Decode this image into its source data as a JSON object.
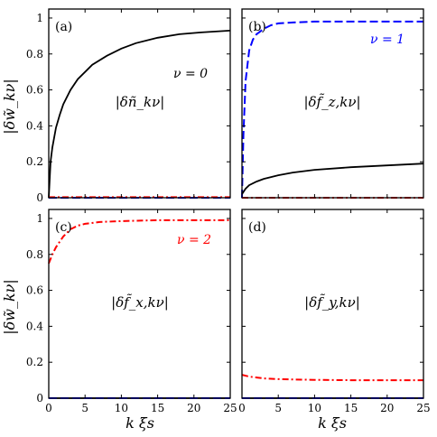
{
  "chart_data": [
    {
      "type": "line",
      "panel_label": "(a)",
      "center_label": "|δñ_kν|",
      "annotation": {
        "text": "ν = 0",
        "color": "#000000"
      },
      "xlim": [
        0,
        25
      ],
      "ylim": [
        0,
        1.05
      ],
      "xticks": [
        "0",
        "5",
        "10",
        "15",
        "20",
        "25"
      ],
      "yticks": [
        "0",
        "0.2",
        "0.4",
        "0.6",
        "0.8",
        "1"
      ],
      "series": [
        {
          "color": "#000000",
          "style": "solid",
          "x": [
            0,
            0.25,
            0.5,
            1,
            1.5,
            2,
            3,
            4,
            5,
            6,
            8,
            10,
            12,
            15,
            18,
            21,
            25
          ],
          "y": [
            0.0,
            0.2,
            0.28,
            0.39,
            0.46,
            0.52,
            0.6,
            0.66,
            0.7,
            0.74,
            0.79,
            0.83,
            0.86,
            0.89,
            0.91,
            0.92,
            0.93
          ]
        },
        {
          "color": "#0000ff",
          "style": "dashed",
          "x": [
            0,
            1,
            5,
            10,
            15,
            20,
            25
          ],
          "y": [
            0.0,
            0.0,
            0.0,
            0.0,
            0.0,
            0.0,
            0.0
          ]
        },
        {
          "color": "#ff0000",
          "style": "dashdot",
          "x": [
            0,
            1,
            5,
            10,
            15,
            20,
            25
          ],
          "y": [
            0.003,
            0.003,
            0.003,
            0.003,
            0.003,
            0.003,
            0.003
          ]
        }
      ]
    },
    {
      "type": "line",
      "panel_label": "(b)",
      "center_label": "|δf̃_z,kν|",
      "annotation": {
        "text": "ν = 1",
        "color": "#0000ff"
      },
      "xlim": [
        0,
        25
      ],
      "ylim": [
        0,
        1.05
      ],
      "xticks": [
        "0",
        "5",
        "10",
        "15",
        "20",
        "25"
      ],
      "yticks": [],
      "series": [
        {
          "color": "#0000ff",
          "style": "dashed",
          "x": [
            0,
            0.2,
            0.5,
            1,
            1.5,
            2,
            3,
            4,
            5,
            7,
            10,
            15,
            20,
            25
          ],
          "y": [
            0.0,
            0.35,
            0.65,
            0.82,
            0.88,
            0.91,
            0.94,
            0.96,
            0.97,
            0.975,
            0.98,
            0.98,
            0.98,
            0.98
          ]
        },
        {
          "color": "#000000",
          "style": "solid",
          "x": [
            0,
            0.5,
            1,
            2,
            3,
            4,
            5,
            7,
            10,
            15,
            20,
            25
          ],
          "y": [
            0.02,
            0.05,
            0.07,
            0.09,
            0.105,
            0.115,
            0.125,
            0.14,
            0.155,
            0.17,
            0.18,
            0.19
          ]
        },
        {
          "color": "#ff0000",
          "style": "dashdot",
          "x": [
            0,
            5,
            10,
            15,
            20,
            25
          ],
          "y": [
            0.0,
            0.0,
            0.0,
            0.0,
            0.0,
            0.0
          ]
        }
      ]
    },
    {
      "type": "line",
      "panel_label": "(c)",
      "center_label": "|δf̃_x,kν|",
      "annotation": {
        "text": "ν = 2",
        "color": "#ff0000"
      },
      "xlim": [
        0,
        25
      ],
      "ylim": [
        0,
        1.05
      ],
      "xticks": [
        "0",
        "5",
        "10",
        "15",
        "20",
        "25"
      ],
      "yticks": [
        "0",
        "0.2",
        "0.4",
        "0.6",
        "0.8",
        "1"
      ],
      "xlabel": "k ξs",
      "series": [
        {
          "color": "#ff0000",
          "style": "dashdot",
          "x": [
            0,
            0.5,
            1,
            2,
            3,
            4,
            5,
            7,
            10,
            15,
            20,
            25
          ],
          "y": [
            0.75,
            0.8,
            0.84,
            0.9,
            0.94,
            0.96,
            0.97,
            0.98,
            0.985,
            0.99,
            0.99,
            0.99
          ]
        },
        {
          "color": "#000000",
          "style": "solid",
          "x": [
            0,
            5,
            10,
            15,
            20,
            25
          ],
          "y": [
            0.0,
            0.0,
            0.0,
            0.0,
            0.0,
            0.0
          ]
        },
        {
          "color": "#0000ff",
          "style": "dashed",
          "x": [
            0,
            5,
            10,
            15,
            20,
            25
          ],
          "y": [
            0.0,
            0.0,
            0.0,
            0.0,
            0.0,
            0.0
          ]
        }
      ]
    },
    {
      "type": "line",
      "panel_label": "(d)",
      "center_label": "|δf̃_y,kν|",
      "xlim": [
        0,
        25
      ],
      "ylim": [
        0,
        1.05
      ],
      "xticks": [
        "0",
        "5",
        "10",
        "15",
        "20",
        "25"
      ],
      "yticks": [],
      "xlabel": "k ξs",
      "series": [
        {
          "color": "#ff0000",
          "style": "dashdot",
          "x": [
            0,
            1,
            2,
            3,
            4,
            5,
            7,
            10,
            15,
            20,
            25
          ],
          "y": [
            0.13,
            0.12,
            0.115,
            0.11,
            0.108,
            0.106,
            0.104,
            0.102,
            0.1,
            0.1,
            0.1
          ]
        },
        {
          "color": "#000000",
          "style": "solid",
          "x": [
            0,
            5,
            10,
            15,
            20,
            25
          ],
          "y": [
            0.0,
            0.0,
            0.0,
            0.0,
            0.0,
            0.0
          ]
        },
        {
          "color": "#0000ff",
          "style": "dashed",
          "x": [
            0,
            5,
            10,
            15,
            20,
            25
          ],
          "y": [
            0.0,
            0.0,
            0.0,
            0.0,
            0.0,
            0.0
          ]
        }
      ]
    }
  ],
  "ylabel": "|δw̃_kν|"
}
